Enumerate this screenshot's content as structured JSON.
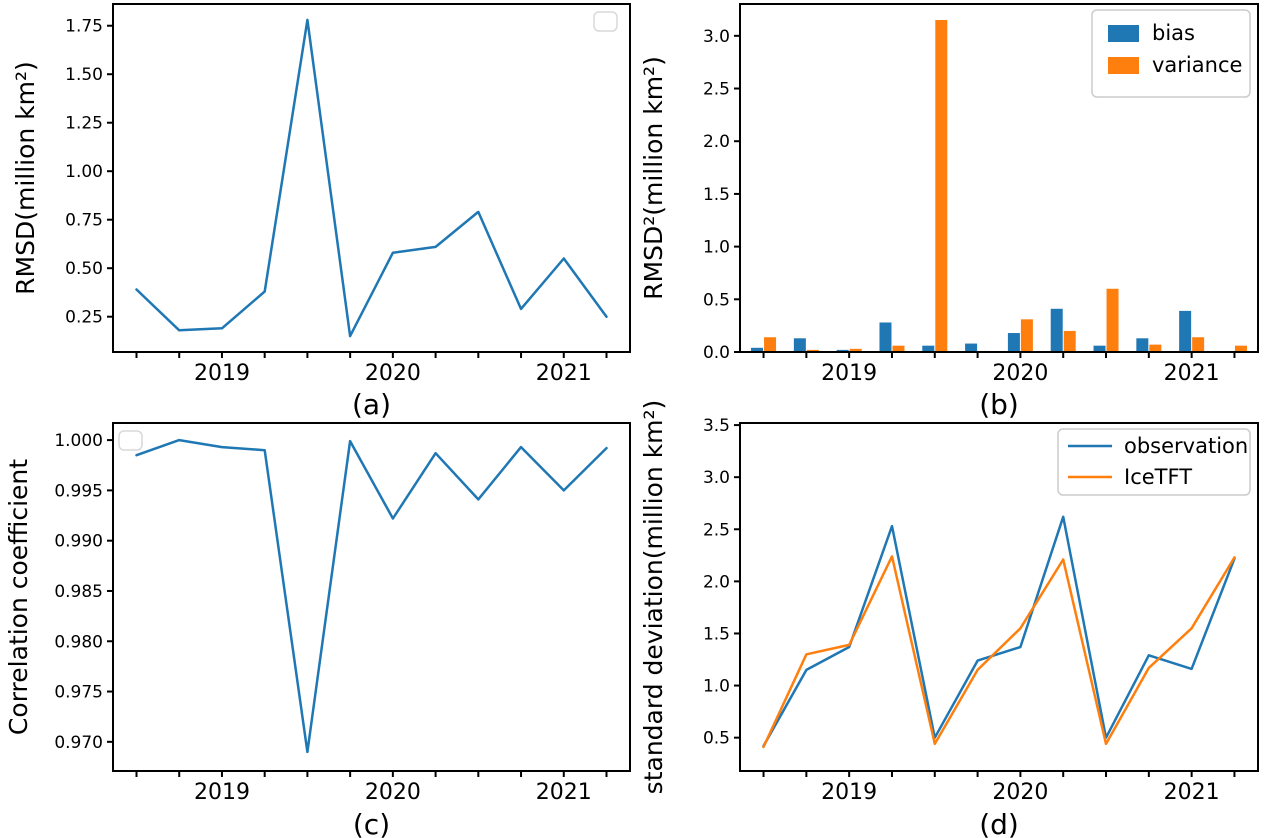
{
  "figure": {
    "background": "#ffffff",
    "spine_color": "#000000",
    "legend_edge_color": "#cccccc",
    "accent_blue": "#1f77b4",
    "accent_orange": "#ff7f0e"
  },
  "x_axis": {
    "x": [
      2018.5,
      2018.75,
      2019.0,
      2019.25,
      2019.5,
      2019.75,
      2020.0,
      2020.25,
      2020.5,
      2020.75,
      2021.0,
      2021.25
    ],
    "xlim": [
      2018.3625,
      2021.3875
    ],
    "year_ticks": [
      2019,
      2020,
      2021
    ],
    "year_labels": [
      "2019",
      "2020",
      "2021"
    ]
  },
  "chart_data": [
    {
      "id": "a",
      "type": "line",
      "caption": "(a)",
      "ylabel": "RMSD(million km²)",
      "ylim": [
        0.068,
        1.862
      ],
      "yticks": [
        0.25,
        0.5,
        0.75,
        1.0,
        1.25,
        1.5,
        1.75
      ],
      "ytick_labels": [
        "0.25",
        "0.50",
        "0.75",
        "1.00",
        "1.25",
        "1.50",
        "1.75"
      ],
      "x": [
        2018.5,
        2018.75,
        2019.0,
        2019.25,
        2019.5,
        2019.75,
        2020.0,
        2020.25,
        2020.5,
        2020.75,
        2021.0,
        2021.25
      ],
      "series": [
        {
          "name": "RMSD",
          "color": "#1f77b4",
          "values": [
            0.39,
            0.18,
            0.19,
            0.38,
            1.78,
            0.15,
            0.58,
            0.61,
            0.79,
            0.29,
            0.55,
            0.25
          ]
        }
      ],
      "legend": {
        "empty": true,
        "position": "upper-right"
      }
    },
    {
      "id": "b",
      "type": "bar",
      "caption": "(b)",
      "ylabel": "RMSD²(million km²)",
      "ylim": [
        0,
        3.302
      ],
      "yticks": [
        0.0,
        0.5,
        1.0,
        1.5,
        2.0,
        2.5,
        3.0
      ],
      "ytick_labels": [
        "0.0",
        "0.5",
        "1.0",
        "1.5",
        "2.0",
        "2.5",
        "3.0"
      ],
      "x": [
        2018.5,
        2018.75,
        2019.0,
        2019.25,
        2019.5,
        2019.75,
        2020.0,
        2020.25,
        2020.5,
        2020.75,
        2021.0,
        2021.25
      ],
      "series": [
        {
          "name": "bias",
          "color": "#1f77b4",
          "values": [
            0.04,
            0.13,
            0.02,
            0.28,
            0.06,
            0.08,
            0.18,
            0.41,
            0.06,
            0.13,
            0.39,
            0.0
          ]
        },
        {
          "name": "variance",
          "color": "#ff7f0e",
          "values": [
            0.14,
            0.02,
            0.03,
            0.06,
            3.15,
            0.01,
            0.31,
            0.2,
            0.6,
            0.07,
            0.14,
            0.06
          ]
        }
      ],
      "legend": {
        "empty": false,
        "position": "upper-right",
        "marker": "patch",
        "entries": [
          "bias",
          "variance"
        ]
      }
    },
    {
      "id": "c",
      "type": "line",
      "caption": "(c)",
      "ylabel": "Correlation coefficient",
      "ylim": [
        0.9671,
        1.0017
      ],
      "yticks": [
        0.97,
        0.975,
        0.98,
        0.985,
        0.99,
        0.995,
        1.0
      ],
      "ytick_labels": [
        "0.970",
        "0.975",
        "0.980",
        "0.985",
        "0.990",
        "0.995",
        "1.000"
      ],
      "x": [
        2018.5,
        2018.75,
        2019.0,
        2019.25,
        2019.5,
        2019.75,
        2020.0,
        2020.25,
        2020.5,
        2020.75,
        2021.0,
        2021.25
      ],
      "series": [
        {
          "name": "correlation",
          "color": "#1f77b4",
          "values": [
            0.9985,
            1.0,
            0.9993,
            0.999,
            0.969,
            0.9999,
            0.9922,
            0.9987,
            0.9941,
            0.9993,
            0.995,
            0.9992
          ]
        }
      ],
      "legend": {
        "empty": true,
        "position": "upper-left"
      }
    },
    {
      "id": "d",
      "type": "line",
      "caption": "(d)",
      "ylabel": "standard deviation(million km²)",
      "ylim": [
        0.18,
        3.52
      ],
      "yticks": [
        0.5,
        1.0,
        1.5,
        2.0,
        2.5,
        3.0,
        3.5
      ],
      "ytick_labels": [
        "0.5",
        "1.0",
        "1.5",
        "2.0",
        "2.5",
        "3.0",
        "3.5"
      ],
      "x": [
        2018.5,
        2018.75,
        2019.0,
        2019.25,
        2019.5,
        2019.75,
        2020.0,
        2020.25,
        2020.5,
        2020.75,
        2021.0,
        2021.25
      ],
      "series": [
        {
          "name": "observation",
          "color": "#1f77b4",
          "values": [
            0.42,
            1.15,
            1.37,
            2.53,
            0.5,
            1.24,
            1.37,
            2.62,
            0.5,
            1.29,
            1.16,
            2.22
          ]
        },
        {
          "name": "IceTFT",
          "color": "#ff7f0e",
          "values": [
            0.41,
            1.3,
            1.39,
            2.24,
            0.44,
            1.15,
            1.55,
            2.21,
            0.44,
            1.17,
            1.55,
            2.23
          ]
        }
      ],
      "legend": {
        "empty": false,
        "position": "upper-right",
        "marker": "line",
        "entries": [
          "observation",
          "IceTFT"
        ]
      }
    }
  ]
}
